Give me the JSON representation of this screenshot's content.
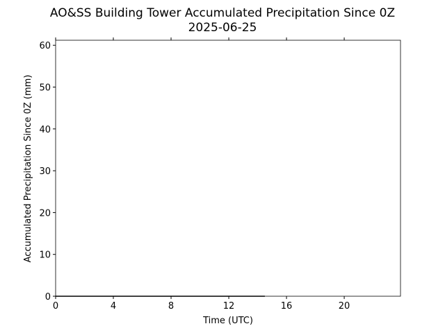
{
  "chart_data": {
    "type": "line",
    "title": "AO&SS Building Tower Accumulated Precipitation Since 0Z",
    "subtitle": "2025-06-25",
    "x_label": "Time (UTC)",
    "y_label": "Accumulated Precipitation Since 0Z (mm)",
    "x": [
      0,
      2,
      4,
      6,
      8,
      10,
      12,
      14.5
    ],
    "series": [
      {
        "color": "#000000",
        "values": [
          0,
          0,
          0,
          0,
          0,
          0,
          0,
          0
        ]
      }
    ],
    "xlim": [
      0,
      23.9
    ],
    "xticks": [
      0,
      4,
      8,
      12,
      16,
      20
    ],
    "ylim": [
      0,
      61.2
    ],
    "yticks": [
      0,
      10,
      20,
      30,
      40,
      50,
      60
    ],
    "grid": false
  }
}
